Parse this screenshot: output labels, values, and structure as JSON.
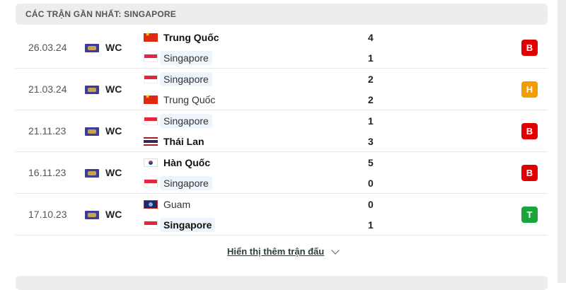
{
  "header": {
    "title": "CÁC TRẬN GẦN NHẤT: SINGAPORE"
  },
  "matches": [
    {
      "date": "26.03.24",
      "competition": "WC",
      "home": {
        "name": "Trung Quốc",
        "flag": "cn",
        "score": "4",
        "bold": true,
        "hl": false
      },
      "away": {
        "name": "Singapore",
        "flag": "sg",
        "score": "1",
        "bold": false,
        "hl": true
      },
      "result": "B",
      "result_color": "#e00000"
    },
    {
      "date": "21.03.24",
      "competition": "WC",
      "home": {
        "name": "Singapore",
        "flag": "sg",
        "score": "2",
        "bold": false,
        "hl": true
      },
      "away": {
        "name": "Trung Quốc",
        "flag": "cn",
        "score": "2",
        "bold": false,
        "hl": false
      },
      "result": "H",
      "result_color": "#f29c00"
    },
    {
      "date": "21.11.23",
      "competition": "WC",
      "home": {
        "name": "Singapore",
        "flag": "sg",
        "score": "1",
        "bold": false,
        "hl": true
      },
      "away": {
        "name": "Thái Lan",
        "flag": "th",
        "score": "3",
        "bold": true,
        "hl": false
      },
      "result": "B",
      "result_color": "#e00000"
    },
    {
      "date": "16.11.23",
      "competition": "WC",
      "home": {
        "name": "Hàn Quốc",
        "flag": "kr",
        "score": "5",
        "bold": true,
        "hl": false
      },
      "away": {
        "name": "Singapore",
        "flag": "sg",
        "score": "0",
        "bold": false,
        "hl": true
      },
      "result": "B",
      "result_color": "#e00000"
    },
    {
      "date": "17.10.23",
      "competition": "WC",
      "home": {
        "name": "Guam",
        "flag": "gu",
        "score": "0",
        "bold": false,
        "hl": false
      },
      "away": {
        "name": "Singapore",
        "flag": "sg",
        "score": "1",
        "bold": true,
        "hl": true
      },
      "result": "T",
      "result_color": "#1aa53a"
    }
  ],
  "show_more": {
    "label": "Hiển thị thêm trận đấu",
    "icon": "chevron-down-icon"
  }
}
